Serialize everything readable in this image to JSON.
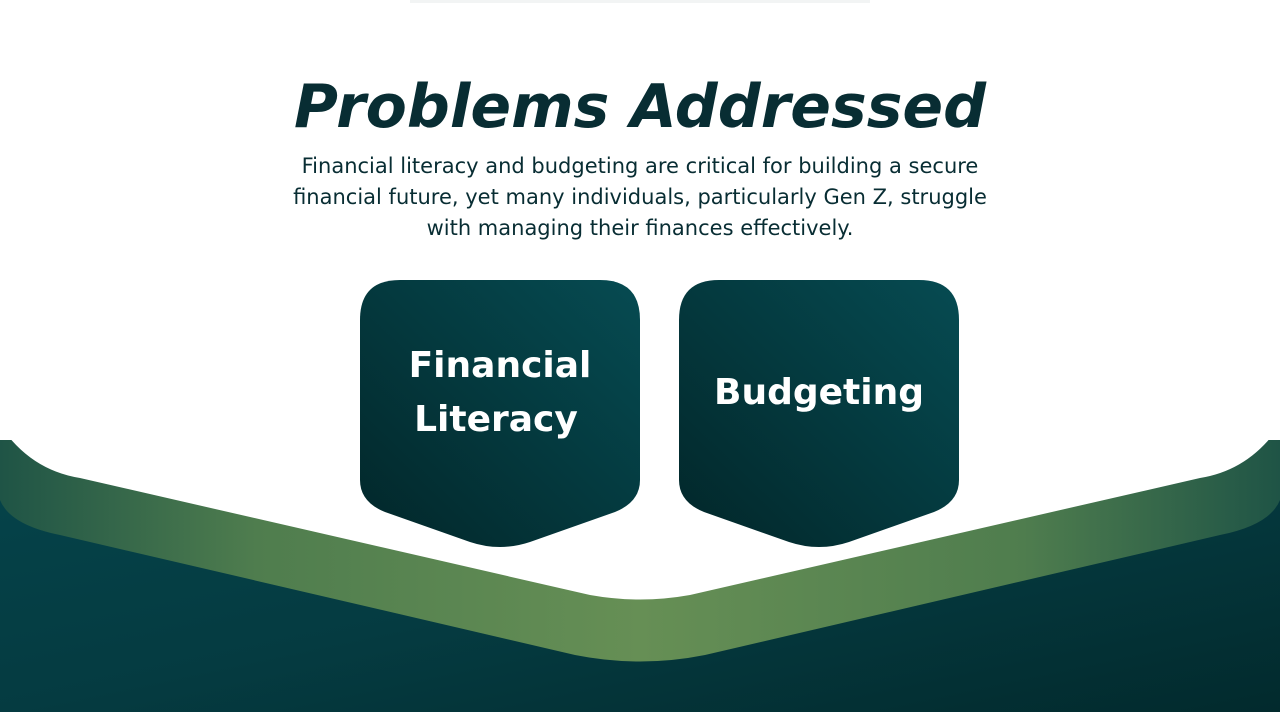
{
  "slide": {
    "title": "Problems Addressed",
    "description": "Financial literacy and budgeting are critical for building a secure financial future, yet many individuals, particularly Gen Z, struggle with managing their finances effectively.",
    "cards": [
      {
        "label_line1": "Financial",
        "label_line2": "Literacy"
      },
      {
        "label": "Budgeting"
      }
    ]
  },
  "colors": {
    "text_dark": "#082d33",
    "card_dark": "#032a2e",
    "card_light": "#064b52",
    "wave_teal": "#04434a",
    "wave_green": "#5f8c52",
    "background": "#ffffff"
  }
}
